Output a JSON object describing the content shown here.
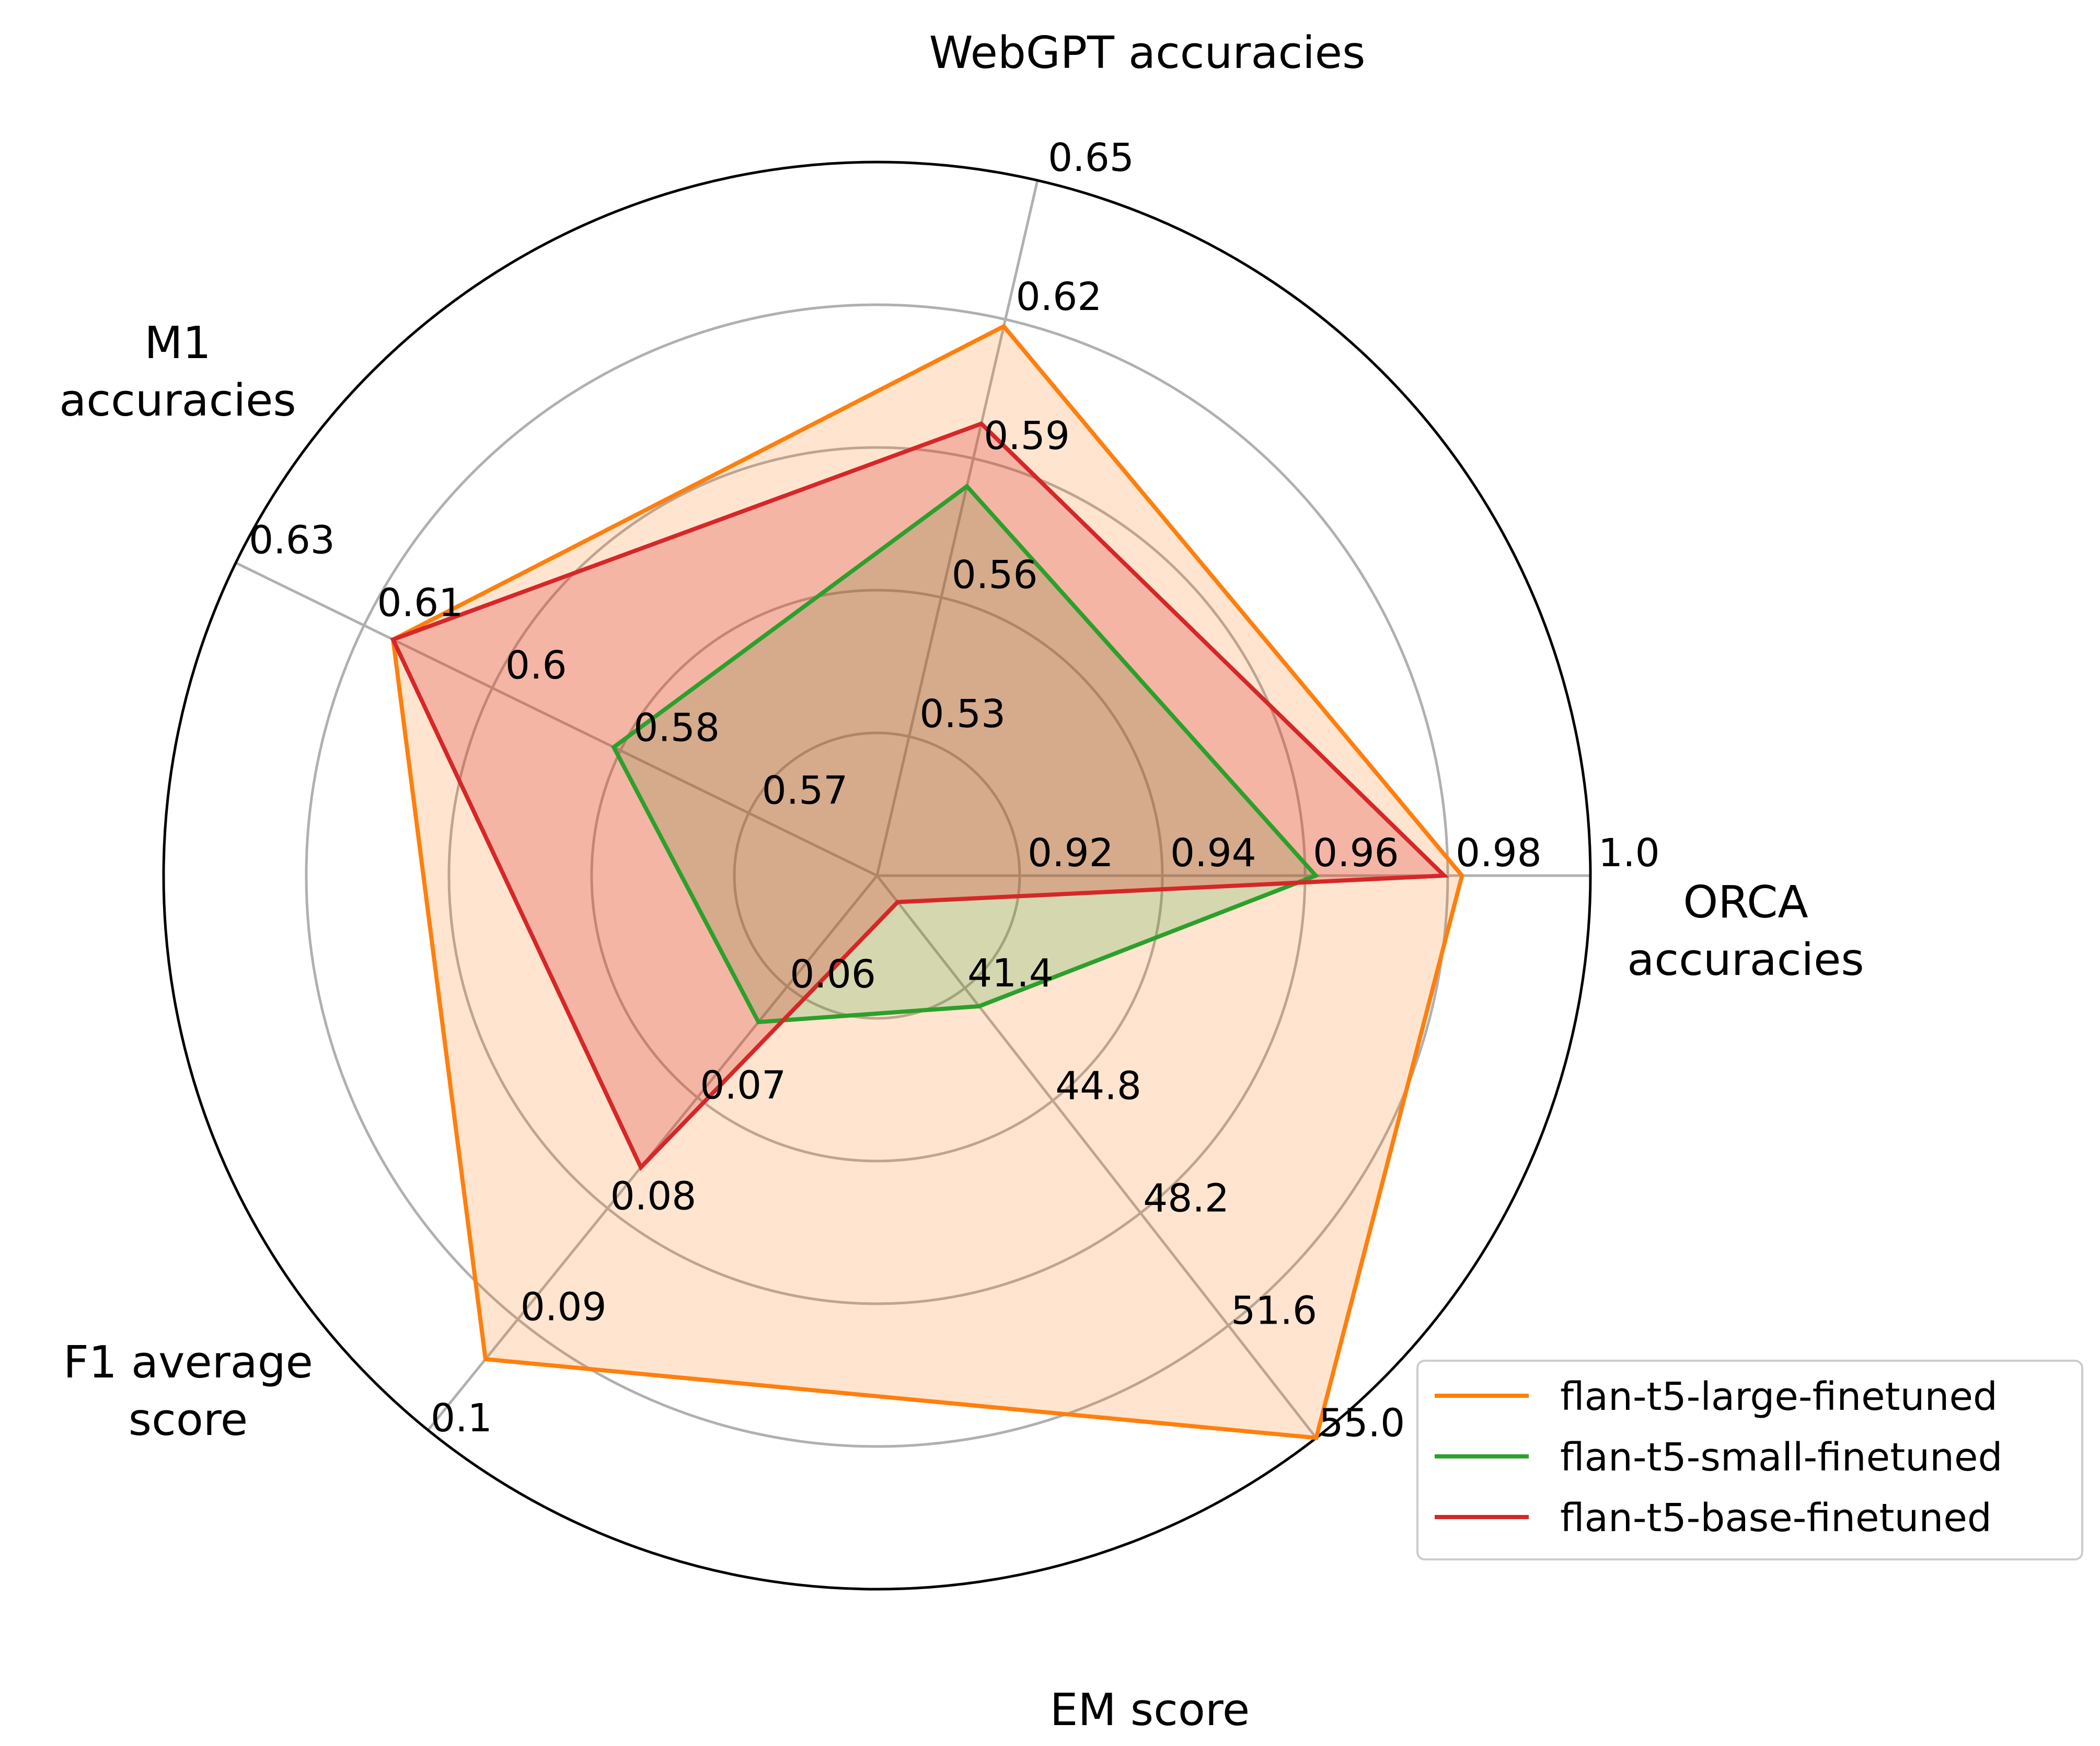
{
  "chart_data": {
    "type": "radar",
    "axes": [
      {
        "label": "ORCA\naccuracies",
        "ticks": [
          "0.92",
          "0.94",
          "0.96",
          "0.98",
          "1.0"
        ]
      },
      {
        "label": "WebGPT accuracies",
        "ticks": [
          "0.53",
          "0.56",
          "0.59",
          "0.62",
          "0.65"
        ]
      },
      {
        "label": "M1\naccuracies",
        "ticks": [
          "0.57",
          "0.58",
          "0.6",
          "0.61",
          "0.63"
        ]
      },
      {
        "label": "F1 average\nscore",
        "ticks": [
          "0.06",
          "0.07",
          "0.08",
          "0.09",
          "0.1"
        ]
      },
      {
        "label": "EM score",
        "ticks": [
          "41.4",
          "44.8",
          "48.2",
          "51.6",
          "55.0"
        ]
      }
    ],
    "series": [
      {
        "name": "flan-t5-large-finetuned",
        "color": "#ff7f0e",
        "values": [
          0.982,
          0.6185,
          0.6116,
          0.0936,
          55.0
        ]
      },
      {
        "name": "flan-t5-small-finetuned",
        "color": "#2ca02c",
        "values": [
          0.9615,
          0.584,
          0.5858,
          0.0632,
          41.95
        ]
      },
      {
        "name": "flan-t5-base-finetuned",
        "color": "#d62728",
        "values": [
          0.9795,
          0.5975,
          0.6116,
          0.0763,
          38.8
        ]
      }
    ],
    "grid": true,
    "legend_position": "bottom-right"
  }
}
